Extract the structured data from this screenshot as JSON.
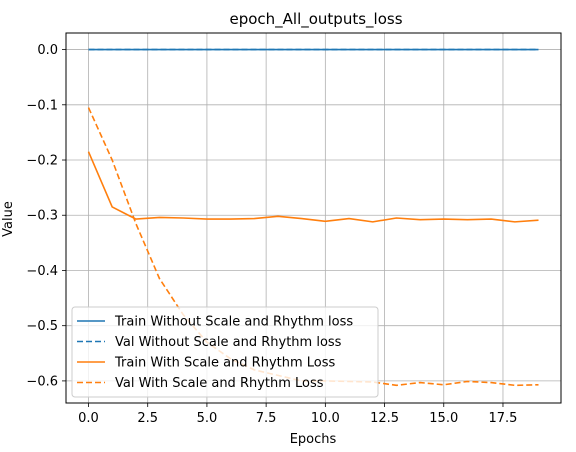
{
  "chart_data": {
    "type": "line",
    "title": "epoch_All_outputs_loss",
    "xlabel": "Epochs",
    "ylabel": "Value",
    "xlim": [
      -0.95,
      19.95
    ],
    "ylim": [
      -0.64,
      0.03
    ],
    "xticks": [
      0.0,
      2.5,
      5.0,
      7.5,
      10.0,
      12.5,
      15.0,
      17.5
    ],
    "xtick_labels": [
      "0.0",
      "2.5",
      "5.0",
      "7.5",
      "10.0",
      "12.5",
      "15.0",
      "17.5"
    ],
    "yticks": [
      0.0,
      -0.1,
      -0.2,
      -0.3,
      -0.4,
      -0.5,
      -0.6
    ],
    "ytick_labels": [
      "0.0",
      "−0.1",
      "−0.2",
      "−0.3",
      "−0.4",
      "−0.5",
      "−0.6"
    ],
    "grid": true,
    "legend_position": "lower-left",
    "x": [
      0,
      1,
      2,
      3,
      4,
      5,
      6,
      7,
      8,
      9,
      10,
      11,
      12,
      13,
      14,
      15,
      16,
      17,
      18,
      19
    ],
    "series": [
      {
        "name": "Train Without Scale and Rhythm loss",
        "color": "#1f77b4",
        "dash": "solid",
        "values": [
          0,
          0,
          0,
          0,
          0,
          0,
          0,
          0,
          0,
          0,
          0,
          0,
          0,
          0,
          0,
          0,
          0,
          0,
          0,
          0
        ]
      },
      {
        "name": "Val Without Scale and Rhythm loss",
        "color": "#1f77b4",
        "dash": "dashed",
        "values": [
          0,
          0,
          0,
          0,
          0,
          0,
          0,
          0,
          0,
          0,
          0,
          0,
          0,
          0,
          0,
          0,
          0,
          0,
          0,
          0
        ]
      },
      {
        "name": "Train With Scale and Rhythm Loss",
        "color": "#ff7f0e",
        "dash": "solid",
        "values": [
          -0.185,
          -0.285,
          -0.307,
          -0.304,
          -0.305,
          -0.307,
          -0.307,
          -0.306,
          -0.302,
          -0.306,
          -0.311,
          -0.306,
          -0.312,
          -0.305,
          -0.308,
          -0.307,
          -0.308,
          -0.307,
          -0.312,
          -0.309
        ]
      },
      {
        "name": "Val With Scale and Rhythm Loss",
        "color": "#ff7f0e",
        "dash": "dashed",
        "values": [
          -0.105,
          -0.2,
          -0.315,
          -0.415,
          -0.48,
          -0.53,
          -0.56,
          -0.58,
          -0.59,
          -0.6,
          -0.6,
          -0.601,
          -0.602,
          -0.608,
          -0.603,
          -0.607,
          -0.601,
          -0.603,
          -0.608,
          -0.607
        ]
      }
    ]
  }
}
